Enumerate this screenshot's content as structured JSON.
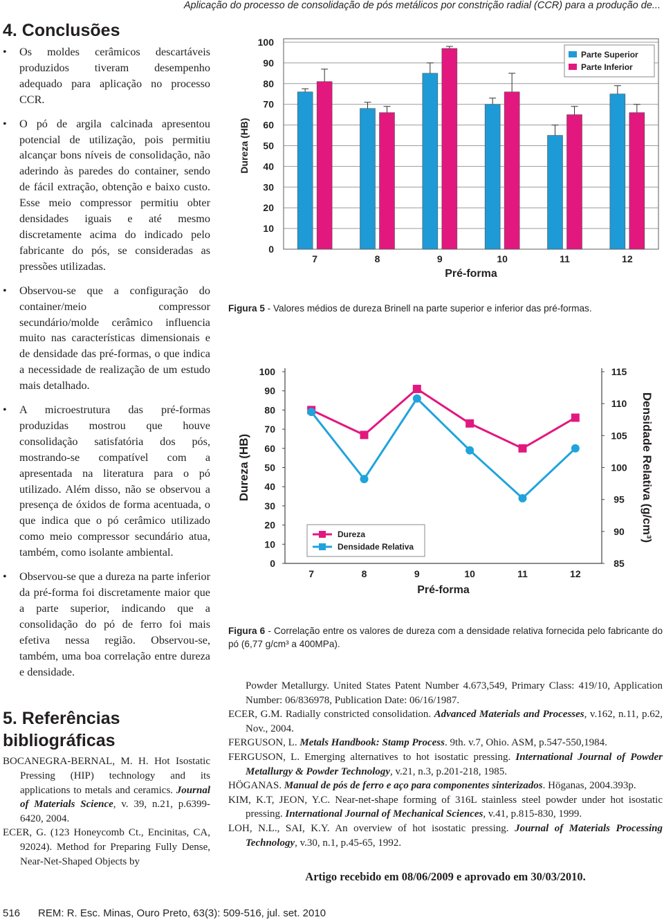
{
  "header": "Aplicação do processo de consolidação de pós metálicos por constrição radial (CCR) para a produção de...",
  "conclusions": {
    "title": "4. Conclusões",
    "bullets": [
      "Os moldes cerâmicos descartáveis produzidos tiveram desempenho adequado para aplicação no processo CCR.",
      "O pó de argila calcinada apresentou potencial de utilização, pois permitiu alcançar bons níveis de consolidação, não aderindo às paredes do container, sendo de fácil extração, obtenção e baixo custo. Esse meio compressor permitiu obter densidades iguais e até mesmo discretamente acima do indicado pelo fabricante do pós, se consideradas as pressões utilizadas.",
      "Observou-se que a configuração do container/meio compressor secundário/molde cerâmico influencia muito nas características dimensionais e de densidade das pré-formas, o que indica a necessidade de realização de um estudo mais detalhado.",
      "A microestrutura das pré-formas produzidas mostrou que houve consolidação satisfatória dos pós, mostrando-se compatível com a apresentada na literatura para o pó utilizado. Além disso, não se observou a presença de óxidos de forma acentuada, o que indica que o pó cerâmico utilizado como meio compressor secundário atua, também, como isolante ambiental.",
      "Observou-se que a dureza na parte inferior da pré-forma foi discretamente maior que a parte superior, indicando que a consolidação do pó de ferro foi mais efetiva nessa região. Observou-se, também, uma boa correlação entre dureza e densidade."
    ]
  },
  "references": {
    "title": "5. Referências bibliográficas",
    "left": [
      [
        "BOCANEGRA-BERNAL, M. H. Hot Isostatic Pressing (HIP) technology and its applications to metals and ceramics. ",
        "Journal of Materials Science",
        ", v. 39, n.21, p.6399-6420, 2004."
      ],
      [
        "ECER, G. (123 Honeycomb Ct., Encinitas, CA, 92024). Method for Preparing Fully Dense, Near-Net-Shaped Objects by"
      ]
    ],
    "right": [
      [
        "Powder Metallurgy. United States Patent Number 4.673,549, Primary Class: 419/10, Application Number: 06/836978, Publication Date: 06/16/1987."
      ],
      [
        "ECER, G.M. Radially constricted consolidation. ",
        "Advanced Materials and Processes",
        ", v.162, n.11, p.62, Nov., 2004."
      ],
      [
        "FERGUSON, L. ",
        "Metals Handbook: Stamp Process",
        ". 9th. v.7, Ohio. ASM, p.547-550,1984."
      ],
      [
        "FERGUSON, L. Emerging alternatives to hot isostatic pressing. ",
        "International Journal of Powder Metallurgy & Powder Technology",
        ", v.21, n.3, p.201-218, 1985."
      ],
      [
        "HÖGANAS. ",
        "Manual de pós de ferro e aço para componentes sinterizados",
        ". Höganas, 2004.393p."
      ],
      [
        "KIM, K.T, JEON, Y.C. Near-net-shape forming of 316L stainless steel powder under hot isostatic pressing. ",
        "International Journal of Mechanical Sciences",
        ", v.41, p.815-830, 1999."
      ],
      [
        "LOH, N.L., SAI, K.Y. An overview of hot isostatic pressing. ",
        "Journal of Materials Processing Technology",
        ", v.30, n.1, p.45-65, 1992."
      ]
    ]
  },
  "captions": [
    {
      "label": "Figura 5",
      "text": " - Valores médios de dureza Brinell na parte superior e inferior das pré-formas."
    },
    {
      "label": "Figura 6",
      "text": " - Correlação entre os valores de dureza com a densidade relativa fornecida pelo fabricante do pó (6,77 g/cm³ a 400MPa)."
    }
  ],
  "received": "Artigo recebido em 08/06/2009 e aprovado em 30/03/2010.",
  "footer": {
    "page": "516",
    "journal": "REM: R. Esc. Minas, Ouro Preto, 63(3): 509-516, jul. set. 2010"
  },
  "chart_data": [
    {
      "type": "bar",
      "x_label": "Pré-forma",
      "y_label": "Dureza (HB)",
      "categories": [
        "7",
        "8",
        "9",
        "10",
        "11",
        "12"
      ],
      "series": [
        {
          "name": "Parte Superior",
          "color": "#1e9ad6",
          "values": [
            76,
            68,
            85,
            70,
            55,
            75
          ],
          "errors": [
            1.5,
            3,
            5,
            3,
            5,
            4
          ]
        },
        {
          "name": "Parte Inferior",
          "color": "#e2187f",
          "values": [
            81,
            66,
            97,
            76,
            65,
            66
          ],
          "errors": [
            6,
            3,
            1,
            9,
            4,
            4
          ]
        }
      ],
      "ylim": [
        0,
        100
      ],
      "yticks": [
        0,
        10,
        20,
        30,
        40,
        50,
        60,
        70,
        80,
        90,
        100
      ],
      "grid": true,
      "legend": "top-right"
    },
    {
      "type": "line",
      "x_label": "Pré-forma",
      "y_label": "Dureza (HB)",
      "y2_label": "Densidade Relativa (g/cm³)",
      "categories": [
        "7",
        "8",
        "9",
        "10",
        "11",
        "12"
      ],
      "series": [
        {
          "name": "Dureza",
          "color": "#e2187f",
          "marker": "square",
          "values": [
            80,
            67,
            91,
            73,
            60,
            76
          ]
        },
        {
          "name": "Densidade Relativa",
          "color": "#20a3dc",
          "marker": "circle",
          "axis": "y2",
          "values": [
            108.7,
            98.2,
            110.8,
            102.7,
            95.2,
            103
          ]
        }
      ],
      "ylim": [
        0,
        100
      ],
      "yticks": [
        0,
        10,
        20,
        30,
        40,
        50,
        60,
        70,
        80,
        90,
        100
      ],
      "y2lim": [
        85,
        115
      ],
      "y2ticks": [
        85,
        90,
        95,
        100,
        105,
        110,
        115
      ],
      "grid": false,
      "legend": "bottom-left"
    }
  ]
}
